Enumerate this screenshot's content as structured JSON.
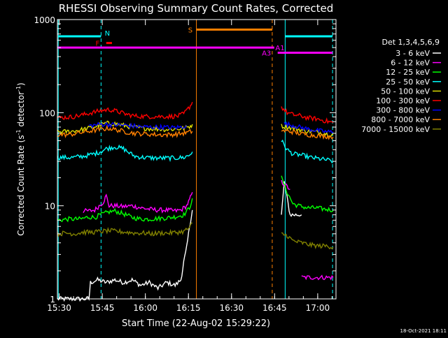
{
  "chart_data": {
    "type": "line",
    "title": "RHESSI Observing Summary Count Rates, Corrected",
    "xlabel": "Start Time (22-Aug-02 15:29:22)",
    "ylabel_main": "Corrected Count Rate (s",
    "ylabel_sup1": "-1",
    "ylabel_mid": " detector",
    "ylabel_sup2": "-1",
    "ylabel_end": ")",
    "yscale": "log",
    "ylim": [
      1,
      1000
    ],
    "xlim_minutes": [
      0,
      97
    ],
    "x_ticks": [
      {
        "m": 0.63,
        "label": "15:30"
      },
      {
        "m": 15.63,
        "label": "15:45"
      },
      {
        "m": 30.63,
        "label": "16:00"
      },
      {
        "m": 45.63,
        "label": "16:15"
      },
      {
        "m": 60.63,
        "label": "16:30"
      },
      {
        "m": 75.63,
        "label": "16:45"
      },
      {
        "m": 90.63,
        "label": "17:00"
      }
    ],
    "y_ticks": [
      {
        "v": 1,
        "label": "1"
      },
      {
        "v": 10,
        "label": "10"
      },
      {
        "v": 100,
        "label": "100"
      },
      {
        "v": 1000,
        "label": "1000"
      }
    ],
    "legend": {
      "placement": "right",
      "header": "Det 1,3,4,5,6,9",
      "entries": [
        {
          "label": "3 - 6 keV",
          "color": "#ffffff"
        },
        {
          "label": "6 - 12 keV",
          "color": "#ff00ff"
        },
        {
          "label": "12 - 25 keV",
          "color": "#00ff00"
        },
        {
          "label": "25 - 50 keV",
          "color": "#00ffff"
        },
        {
          "label": "50 - 100 keV",
          "color": "#dcdc00"
        },
        {
          "label": "100 - 300 keV",
          "color": "#ff0000"
        },
        {
          "label": "300 - 800 keV",
          "color": "#0000ff"
        },
        {
          "label": "800 - 7000 keV",
          "color": "#ff8000"
        },
        {
          "label": "7000 - 15000 keV",
          "color": "#808000"
        }
      ]
    },
    "series": [
      {
        "color": "#ffffff",
        "name": "3 - 6 keV",
        "segments": [
          [
            [
              0,
              1
            ],
            [
              11,
              1
            ],
            [
              11.5,
              1.5
            ],
            [
              14,
              1.6
            ],
            [
              17,
              1.5
            ],
            [
              20,
              1.6
            ],
            [
              23,
              1.5
            ],
            [
              26,
              1.6
            ],
            [
              29,
              1.4
            ],
            [
              32,
              1.5
            ],
            [
              35,
              1.3
            ],
            [
              38,
              1.5
            ],
            [
              41,
              1.4
            ],
            [
              43,
              1.6
            ],
            [
              44,
              2.5
            ],
            [
              45,
              3.5
            ],
            [
              46,
              6
            ],
            [
              47,
              9
            ]
          ],
          [
            [
              78,
              8
            ],
            [
              79,
              18
            ],
            [
              80,
              12
            ],
            [
              81,
              8
            ],
            [
              85,
              8
            ]
          ]
        ]
      },
      {
        "color": "#ff00ff",
        "name": "6 - 12 keV",
        "segments": [
          [
            [
              9,
              8.8
            ],
            [
              11,
              8.8
            ],
            [
              13,
              9
            ],
            [
              16,
              11
            ],
            [
              17,
              12.8
            ],
            [
              18,
              10
            ],
            [
              20,
              10
            ],
            [
              23,
              9.8
            ],
            [
              26,
              10
            ],
            [
              29,
              9.5
            ],
            [
              32,
              9.2
            ],
            [
              35,
              9
            ],
            [
              38,
              9
            ],
            [
              41,
              8.8
            ],
            [
              43,
              9
            ],
            [
              45,
              10
            ],
            [
              46,
              11.5
            ],
            [
              47,
              14
            ]
          ],
          [
            [
              78,
              18
            ],
            [
              80,
              16
            ],
            [
              81,
              15
            ]
          ],
          [
            [
              85,
              1.7
            ],
            [
              96,
              1.7
            ]
          ]
        ]
      },
      {
        "color": "#00ff00",
        "name": "12 - 25 keV",
        "segments": [
          [
            [
              0,
              7
            ],
            [
              4,
              7.2
            ],
            [
              8,
              7.2
            ],
            [
              11,
              7.6
            ],
            [
              13,
              7.5
            ],
            [
              15,
              8
            ],
            [
              18,
              8.6
            ],
            [
              20,
              8.8
            ],
            [
              23,
              8.2
            ],
            [
              26,
              7.5
            ],
            [
              29,
              7.2
            ],
            [
              32,
              7.2
            ],
            [
              35,
              7.3
            ],
            [
              38,
              7.4
            ],
            [
              41,
              7.6
            ],
            [
              44,
              8
            ],
            [
              46,
              9.5
            ],
            [
              47,
              12
            ]
          ],
          [
            [
              78,
              20
            ],
            [
              80,
              14
            ],
            [
              82,
              10.5
            ],
            [
              84,
              10
            ],
            [
              87,
              9.5
            ],
            [
              90,
              9.5
            ],
            [
              93,
              9.2
            ],
            [
              96,
              9
            ]
          ]
        ]
      },
      {
        "color": "#00ffff",
        "name": "25 - 50 keV",
        "segments": [
          [
            [
              0,
              33
            ],
            [
              5,
              33
            ],
            [
              9,
              34
            ],
            [
              11,
              35
            ],
            [
              14,
              37
            ],
            [
              17,
              41
            ],
            [
              20,
              43
            ],
            [
              23,
              41
            ],
            [
              25,
              37
            ],
            [
              27,
              34
            ],
            [
              30,
              33
            ],
            [
              35,
              32.5
            ],
            [
              40,
              32.5
            ],
            [
              44,
              33
            ],
            [
              46,
              35
            ],
            [
              47,
              38
            ]
          ],
          [
            [
              78,
              50
            ],
            [
              80,
              40
            ],
            [
              82,
              36
            ],
            [
              85,
              35
            ],
            [
              88,
              33
            ],
            [
              91,
              32
            ],
            [
              94,
              31
            ],
            [
              96,
              30
            ]
          ]
        ]
      },
      {
        "color": "#dcdc00",
        "name": "50 - 100 keV",
        "segments": [
          [
            [
              0,
              62
            ],
            [
              5,
              63
            ],
            [
              10,
              67
            ],
            [
              14,
              72
            ],
            [
              17,
              77
            ],
            [
              20,
              76
            ],
            [
              23,
              73
            ],
            [
              26,
              70
            ],
            [
              30,
              68
            ],
            [
              34,
              67
            ],
            [
              38,
              66
            ],
            [
              42,
              67
            ],
            [
              44,
              68
            ],
            [
              46,
              71
            ],
            [
              47,
              75
            ]
          ],
          [
            [
              78,
              72
            ],
            [
              80,
              70
            ],
            [
              83,
              67
            ],
            [
              86,
              64
            ],
            [
              90,
              62
            ],
            [
              93,
              60
            ],
            [
              96,
              58
            ]
          ]
        ]
      },
      {
        "color": "#ff0000",
        "name": "100 - 300 keV",
        "segments": [
          [
            [
              0,
              88
            ],
            [
              5,
              90
            ],
            [
              9,
              95
            ],
            [
              12,
              100
            ],
            [
              15,
              105
            ],
            [
              18,
              108
            ],
            [
              21,
              103
            ],
            [
              24,
              96
            ],
            [
              27,
              92
            ],
            [
              31,
              91
            ],
            [
              35,
              91
            ],
            [
              39,
              91
            ],
            [
              42,
              92
            ],
            [
              44,
              97
            ],
            [
              46,
              115
            ],
            [
              47,
              130
            ]
          ],
          [
            [
              78,
              115
            ],
            [
              80,
              100
            ],
            [
              82,
              95
            ],
            [
              85,
              92
            ],
            [
              87,
              88
            ],
            [
              90,
              86
            ],
            [
              93,
              82
            ],
            [
              96,
              78
            ]
          ]
        ]
      },
      {
        "color": "#0000ff",
        "name": "300 - 800 keV",
        "segments": [
          [
            [
              11,
              72
            ],
            [
              15,
              75
            ],
            [
              17,
              75
            ],
            [
              20,
              74
            ],
            [
              24,
              73
            ],
            [
              28,
              71
            ],
            [
              32,
              70
            ],
            [
              36,
              70
            ],
            [
              40,
              69
            ],
            [
              43,
              70
            ],
            [
              45,
              73
            ]
          ],
          [
            [
              79,
              76
            ],
            [
              82,
              73
            ],
            [
              85,
              69
            ],
            [
              88,
              66
            ],
            [
              91,
              64
            ],
            [
              94,
              62
            ],
            [
              96,
              62
            ]
          ]
        ]
      },
      {
        "color": "#ff8000",
        "name": "800 - 7000 keV",
        "segments": [
          [
            [
              0,
              58
            ],
            [
              4,
              58
            ],
            [
              8,
              61
            ],
            [
              12,
              64
            ],
            [
              15,
              66
            ],
            [
              18,
              68
            ],
            [
              21,
              65
            ],
            [
              24,
              62
            ],
            [
              27,
              60
            ],
            [
              31,
              59
            ],
            [
              35,
              58
            ],
            [
              39,
              58
            ],
            [
              42,
              59
            ],
            [
              45,
              61
            ],
            [
              47,
              63
            ]
          ],
          [
            [
              78,
              64
            ],
            [
              81,
              63
            ],
            [
              84,
              60
            ],
            [
              87,
              58
            ],
            [
              90,
              57
            ],
            [
              93,
              56
            ],
            [
              96,
              55
            ]
          ]
        ]
      },
      {
        "color": "#808000",
        "name": "7000 - 15000 keV",
        "segments": [
          [
            [
              0,
              5
            ],
            [
              3,
              5.1
            ],
            [
              6,
              5
            ],
            [
              9,
              5.2
            ],
            [
              12,
              5.2
            ],
            [
              15,
              5.3
            ],
            [
              18,
              5.4
            ],
            [
              21,
              5.3
            ],
            [
              24,
              5.2
            ],
            [
              27,
              5.1
            ],
            [
              30,
              5.1
            ],
            [
              33,
              5
            ],
            [
              36,
              5.1
            ],
            [
              39,
              5.1
            ],
            [
              42,
              5.2
            ],
            [
              44,
              5.3
            ],
            [
              46,
              5.8
            ],
            [
              47,
              6.5
            ]
          ],
          [
            [
              78,
              5
            ],
            [
              80,
              4.8
            ],
            [
              82,
              4.2
            ],
            [
              85,
              4
            ],
            [
              88,
              3.8
            ],
            [
              91,
              3.7
            ],
            [
              94,
              3.7
            ],
            [
              96,
              3.6
            ]
          ]
        ]
      }
    ],
    "vertical_lines": [
      {
        "m": 0.3,
        "color": "#00ffff",
        "style": "solid"
      },
      {
        "m": 15.2,
        "color": "#00ffff",
        "style": "dashed"
      },
      {
        "m": 48.4,
        "color": "#ff8000",
        "style": "solid"
      },
      {
        "m": 74.8,
        "color": "#ff8000",
        "style": "dashed"
      },
      {
        "m": 79.3,
        "color": "#00ffff",
        "style": "solid"
      },
      {
        "m": 95.8,
        "color": "#00ffff",
        "style": "dashed"
      }
    ],
    "flag_bars": [
      {
        "m0": 0.3,
        "m1": 15.2,
        "v": 660,
        "color": "#00ffff"
      },
      {
        "m0": 17.0,
        "m1": 19.0,
        "v": 560,
        "color": "#ff0000"
      },
      {
        "m0": 0.0,
        "m1": 75.5,
        "v": 500,
        "color": "#ff00ff"
      },
      {
        "m0": 48.4,
        "m1": 74.8,
        "v": 780,
        "color": "#ff8000"
      },
      {
        "m0": 79.3,
        "m1": 95.8,
        "v": 660,
        "color": "#00ffff"
      },
      {
        "m0": 76.7,
        "m1": 95.8,
        "v": 440,
        "color": "#ff00ff"
      }
    ],
    "flag_labels": [
      {
        "text": "N",
        "m": 17.4,
        "v": 720,
        "color": "#00ffff"
      },
      {
        "text": "F",
        "m": 14.0,
        "v": 560,
        "color": "#ff0000"
      },
      {
        "text": "S",
        "m": 46.3,
        "v": 780,
        "color": "#ff8000"
      },
      {
        "text": "A1",
        "m": 77.5,
        "v": 500,
        "color": "#ff00ff"
      },
      {
        "text": "A3",
        "m": 72.8,
        "v": 440,
        "color": "#ff00ff"
      }
    ]
  },
  "footer": {
    "timestamp": "18-Oct-2021 18:11"
  }
}
